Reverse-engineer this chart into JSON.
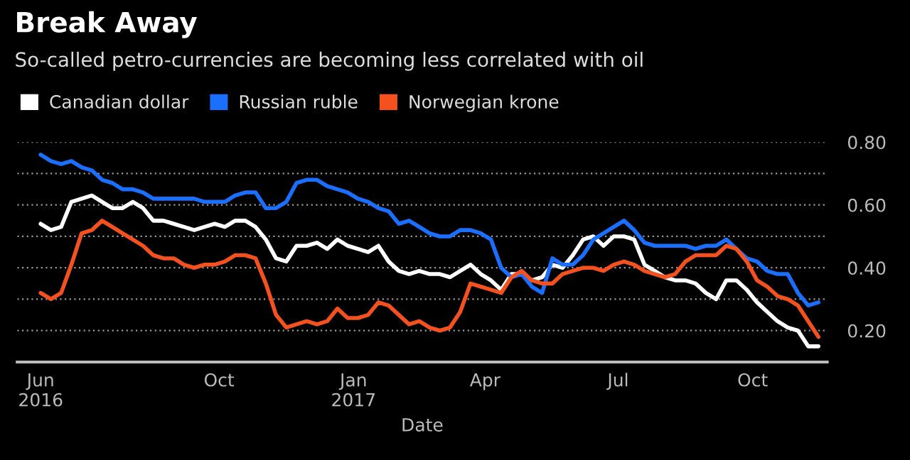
{
  "chart_data": {
    "type": "line",
    "title": "Break Away",
    "subtitle": "So-called petro-currencies are becoming less correlated with oil",
    "xlabel": "Date",
    "x": [
      "2016-06-01",
      "2016-06-08",
      "2016-06-15",
      "2016-06-22",
      "2016-06-29",
      "2016-07-06",
      "2016-07-13",
      "2016-07-20",
      "2016-07-27",
      "2016-08-03",
      "2016-08-10",
      "2016-08-17",
      "2016-08-24",
      "2016-08-31",
      "2016-09-07",
      "2016-09-14",
      "2016-09-21",
      "2016-09-28",
      "2016-10-05",
      "2016-10-12",
      "2016-10-19",
      "2016-10-26",
      "2016-11-02",
      "2016-11-09",
      "2016-11-16",
      "2016-11-23",
      "2016-11-30",
      "2016-12-07",
      "2016-12-14",
      "2016-12-21",
      "2016-12-28",
      "2017-01-04",
      "2017-01-11",
      "2017-01-18",
      "2017-01-25",
      "2017-02-01",
      "2017-02-08",
      "2017-02-15",
      "2017-02-22",
      "2017-03-01",
      "2017-03-08",
      "2017-03-15",
      "2017-03-22",
      "2017-03-29",
      "2017-04-05",
      "2017-04-12",
      "2017-04-19",
      "2017-04-26",
      "2017-05-03",
      "2017-05-10",
      "2017-05-17",
      "2017-05-24",
      "2017-05-31",
      "2017-06-07",
      "2017-06-14",
      "2017-06-21",
      "2017-06-28",
      "2017-07-05",
      "2017-07-12",
      "2017-07-19",
      "2017-07-26",
      "2017-08-02",
      "2017-08-09",
      "2017-08-16",
      "2017-08-23",
      "2017-08-30",
      "2017-09-06",
      "2017-09-13",
      "2017-09-20",
      "2017-09-27",
      "2017-10-04",
      "2017-10-11",
      "2017-10-18",
      "2017-10-25",
      "2017-11-01",
      "2017-11-08",
      "2017-11-15"
    ],
    "series": [
      {
        "name": "Canadian dollar",
        "color": "#ffffff",
        "values": [
          0.54,
          0.52,
          0.53,
          0.61,
          0.62,
          0.63,
          0.61,
          0.59,
          0.59,
          0.61,
          0.59,
          0.55,
          0.55,
          0.54,
          0.53,
          0.52,
          0.53,
          0.54,
          0.53,
          0.55,
          0.55,
          0.53,
          0.49,
          0.43,
          0.42,
          0.47,
          0.47,
          0.48,
          0.46,
          0.49,
          0.47,
          0.46,
          0.45,
          0.47,
          0.42,
          0.39,
          0.38,
          0.39,
          0.38,
          0.38,
          0.37,
          0.39,
          0.41,
          0.38,
          0.36,
          0.33,
          0.38,
          0.38,
          0.36,
          0.37,
          0.41,
          0.4,
          0.44,
          0.49,
          0.5,
          0.47,
          0.5,
          0.5,
          0.49,
          0.41,
          0.39,
          0.37,
          0.36,
          0.36,
          0.35,
          0.32,
          0.3,
          0.36,
          0.36,
          0.33,
          0.29,
          0.26,
          0.23,
          0.21,
          0.2,
          0.15,
          0.15
        ]
      },
      {
        "name": "Russian ruble",
        "color": "#1a6fff",
        "values": [
          0.76,
          0.74,
          0.73,
          0.74,
          0.72,
          0.71,
          0.68,
          0.67,
          0.65,
          0.65,
          0.64,
          0.62,
          0.62,
          0.62,
          0.62,
          0.62,
          0.61,
          0.61,
          0.61,
          0.63,
          0.64,
          0.64,
          0.59,
          0.59,
          0.61,
          0.67,
          0.68,
          0.68,
          0.66,
          0.65,
          0.64,
          0.62,
          0.61,
          0.59,
          0.58,
          0.54,
          0.55,
          0.53,
          0.51,
          0.5,
          0.5,
          0.52,
          0.52,
          0.51,
          0.49,
          0.4,
          0.37,
          0.38,
          0.34,
          0.32,
          0.43,
          0.41,
          0.41,
          0.44,
          0.49,
          0.51,
          0.53,
          0.55,
          0.52,
          0.48,
          0.47,
          0.47,
          0.47,
          0.47,
          0.46,
          0.47,
          0.47,
          0.49,
          0.46,
          0.43,
          0.42,
          0.39,
          0.38,
          0.38,
          0.32,
          0.28,
          0.29
        ]
      },
      {
        "name": "Norwegian krone",
        "color": "#f4511e",
        "values": [
          0.32,
          0.3,
          0.32,
          0.41,
          0.51,
          0.52,
          0.55,
          0.53,
          0.51,
          0.49,
          0.47,
          0.44,
          0.43,
          0.43,
          0.41,
          0.4,
          0.41,
          0.41,
          0.42,
          0.44,
          0.44,
          0.43,
          0.35,
          0.25,
          0.21,
          0.22,
          0.23,
          0.22,
          0.23,
          0.27,
          0.24,
          0.24,
          0.25,
          0.29,
          0.28,
          0.25,
          0.22,
          0.23,
          0.21,
          0.2,
          0.21,
          0.26,
          0.35,
          0.34,
          0.33,
          0.32,
          0.37,
          0.39,
          0.36,
          0.35,
          0.35,
          0.38,
          0.39,
          0.4,
          0.4,
          0.39,
          0.41,
          0.42,
          0.41,
          0.39,
          0.38,
          0.37,
          0.38,
          0.42,
          0.44,
          0.44,
          0.44,
          0.47,
          0.46,
          0.42,
          0.36,
          0.34,
          0.31,
          0.3,
          0.28,
          0.23,
          0.18
        ]
      }
    ],
    "xlim": [
      "2016-05-16",
      "2017-11-21"
    ],
    "xticks": [
      {
        "value": "2016-06-01",
        "label": "Jun\n2016"
      },
      {
        "value": "2016-10-01",
        "label": "Oct"
      },
      {
        "value": "2017-01-01",
        "label": "Jan\n2017"
      },
      {
        "value": "2017-04-01",
        "label": "Apr"
      },
      {
        "value": "2017-07-01",
        "label": "Jul"
      },
      {
        "value": "2017-10-01",
        "label": "Oct"
      }
    ],
    "ylim": [
      0.1,
      0.8
    ],
    "yticks": [
      {
        "value": 0.2,
        "label": "0.20"
      },
      {
        "value": 0.3,
        "label": null
      },
      {
        "value": 0.4,
        "label": "0.40"
      },
      {
        "value": 0.5,
        "label": null
      },
      {
        "value": 0.6,
        "label": "0.60"
      },
      {
        "value": 0.7,
        "label": null
      },
      {
        "value": 0.8,
        "label": "0.80"
      }
    ],
    "grid": "y",
    "legend": "top left",
    "line_style": "solid",
    "marker": "none"
  }
}
